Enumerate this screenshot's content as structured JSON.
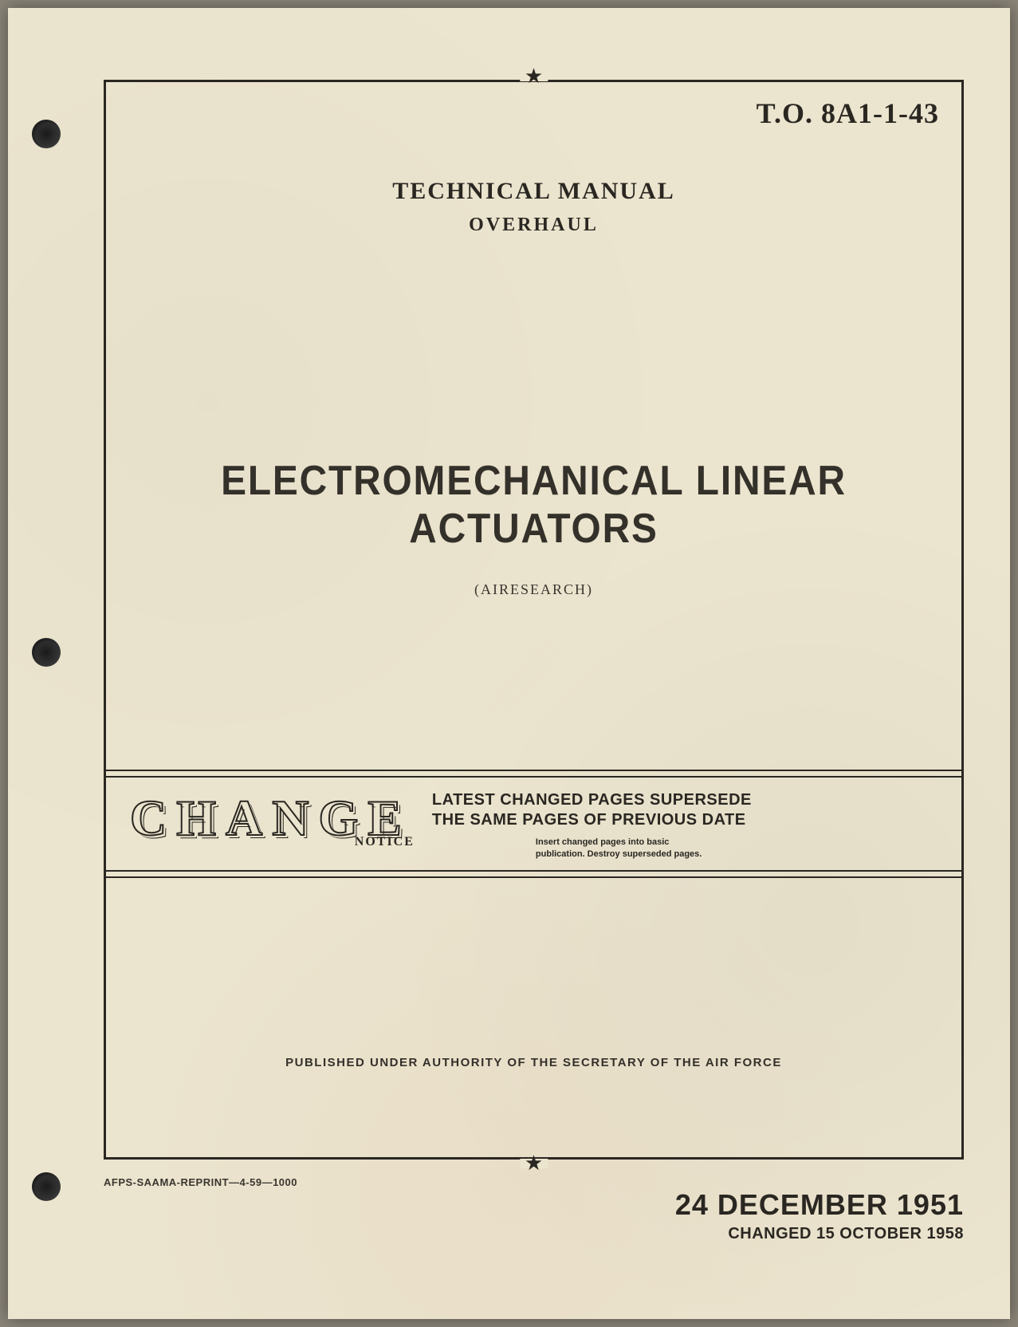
{
  "doc_number": "T.O. 8A1-1-43",
  "heading": {
    "line1": "TECHNICAL MANUAL",
    "line2": "OVERHAUL"
  },
  "title": "ELECTROMECHANICAL LINEAR ACTUATORS",
  "manufacturer": "(AIRESEARCH)",
  "change_band": {
    "word": "CHANGE",
    "notice": "NOTICE",
    "supersede_l1": "LATEST CHANGED PAGES SUPERSEDE",
    "supersede_l2": "THE SAME PAGES OF PREVIOUS DATE",
    "insert_l1": "Insert changed pages into basic",
    "insert_l2": "publication. Destroy superseded pages."
  },
  "authority": "PUBLISHED UNDER AUTHORITY OF THE SECRETARY OF THE AIR FORCE",
  "reprint": "AFPS-SAAMA-REPRINT—4-59—1000",
  "date_main": "24 DECEMBER 1951",
  "date_changed": "CHANGED 15 OCTOBER 1958",
  "colors": {
    "paper": "#ebe4ce",
    "ink": "#2a2722"
  }
}
